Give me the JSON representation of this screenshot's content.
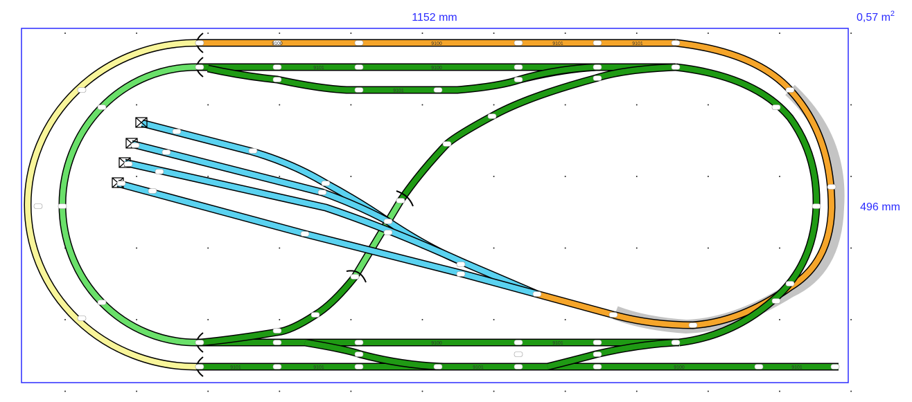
{
  "board": {
    "width_label": "1152 mm",
    "height_label": "496 mm",
    "area_label": "0,57 m",
    "area_unit_sup": "2",
    "frame_color": "#2a2aff"
  },
  "track_colors": {
    "outer_loop": "#f5a52a",
    "outer_left_curve": "#f8f59a",
    "inner_left_curve": "#6ae06a",
    "main_green": "#1f9a14",
    "yard": "#5ad2f0",
    "highlight": "#c0c0c0"
  },
  "pieces": {
    "top_outer": [
      "9100",
      "9100",
      "9101",
      "9101"
    ],
    "top_inner": [
      "9101",
      "9100"
    ],
    "top_siding": [
      "9101"
    ],
    "bottom_inner": [
      "9100",
      "9101"
    ],
    "bottom_outer": [
      "9101",
      "9101",
      "9101",
      "9100",
      "9101"
    ]
  }
}
